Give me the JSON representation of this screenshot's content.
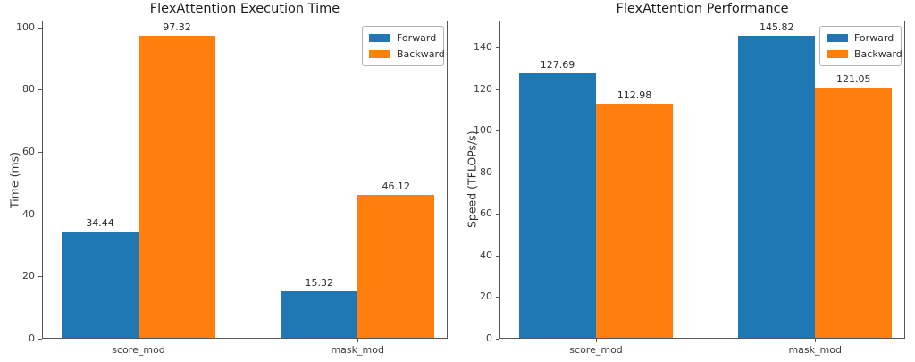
{
  "page": {
    "background": "#ffffff"
  },
  "colors": {
    "forward": "#1f77b4",
    "backward": "#ff7f0e",
    "spine": "#565656"
  },
  "chart_data": [
    {
      "type": "bar",
      "title": "FlexAttention Execution Time",
      "xlabel": "",
      "ylabel": "Time (ms)",
      "categories": [
        "score_mod",
        "mask_mod"
      ],
      "series": [
        {
          "name": "Forward",
          "color": "#1f77b4",
          "values": [
            34.44,
            15.32
          ]
        },
        {
          "name": "Backward",
          "color": "#ff7f0e",
          "values": [
            97.32,
            46.12
          ]
        }
      ],
      "value_labels": {
        "Forward": [
          "34.44",
          "15.32"
        ],
        "Backward": [
          "97.32",
          "46.12"
        ]
      },
      "yticks": [
        0,
        20,
        40,
        60,
        80,
        100
      ],
      "ylim": [
        0,
        102.2
      ],
      "grid": false,
      "legend_position": "upper right",
      "legend_entries": [
        "Forward",
        "Backward"
      ]
    },
    {
      "type": "bar",
      "title": "FlexAttention Performance",
      "xlabel": "",
      "ylabel": "Speed (TFLOPs/s)",
      "categories": [
        "score_mod",
        "mask_mod"
      ],
      "series": [
        {
          "name": "Forward",
          "color": "#1f77b4",
          "values": [
            127.69,
            145.82
          ]
        },
        {
          "name": "Backward",
          "color": "#ff7f0e",
          "values": [
            112.98,
            121.05
          ]
        }
      ],
      "value_labels": {
        "Forward": [
          "127.69",
          "145.82"
        ],
        "Backward": [
          "112.98",
          "121.05"
        ]
      },
      "yticks": [
        0,
        20,
        40,
        60,
        80,
        100,
        120,
        140
      ],
      "ylim": [
        0,
        153.1
      ],
      "grid": false,
      "legend_position": "upper right",
      "legend_entries": [
        "Forward",
        "Backward"
      ]
    }
  ]
}
